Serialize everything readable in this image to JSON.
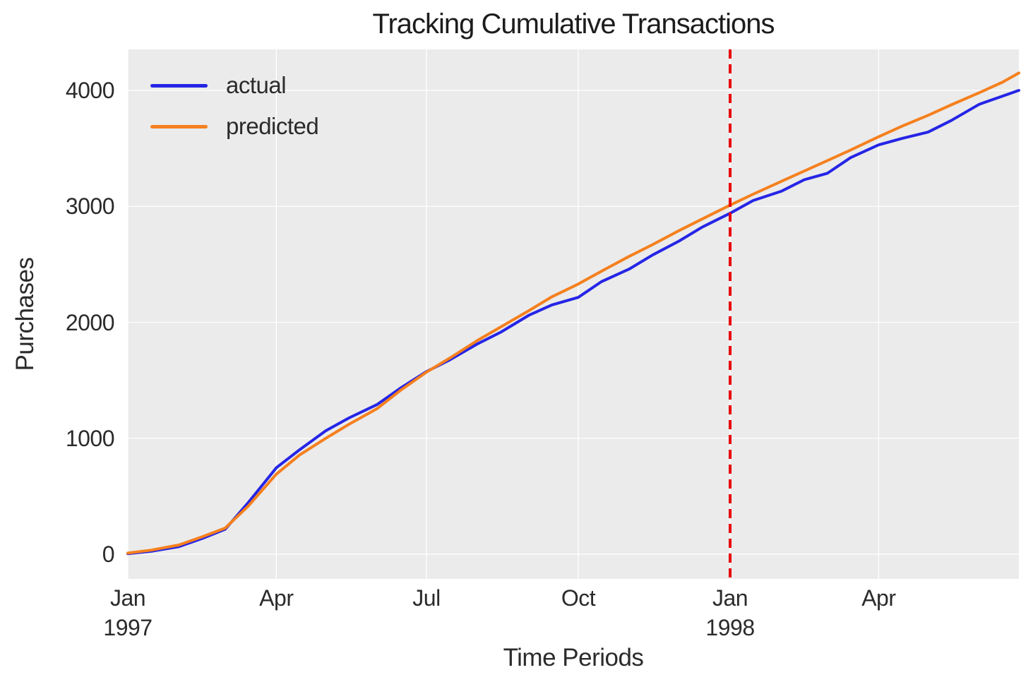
{
  "figure": {
    "title": "Tracking Cumulative Transactions",
    "x_axis_label": "Time Periods",
    "y_axis_label": "Purchases"
  },
  "chart_data": {
    "type": "line",
    "title": "Tracking Cumulative Transactions",
    "xlabel": "Time Periods",
    "ylabel": "Purchases",
    "grid": true,
    "legend_position": "upper left",
    "plot_bg_color": "#ebebeb",
    "grid_color": "#ffffff",
    "text_color": "#2b2b2b",
    "x_range_days": [
      0,
      540
    ],
    "x_date_range": [
      "1997-01-01",
      "1998-06-25"
    ],
    "ylim": [
      -215,
      4355
    ],
    "x_dates": [
      "1997-01-01",
      "1997-01-15",
      "1997-02-01",
      "1997-02-15",
      "1997-03-01",
      "1997-03-15",
      "1997-04-01",
      "1997-04-15",
      "1997-05-01",
      "1997-05-15",
      "1997-06-01",
      "1997-06-15",
      "1997-07-01",
      "1997-07-15",
      "1997-08-01",
      "1997-08-15",
      "1997-09-01",
      "1997-09-15",
      "1997-10-01",
      "1997-10-15",
      "1997-11-01",
      "1997-11-15",
      "1997-12-01",
      "1997-12-15",
      "1998-01-01",
      "1998-01-15",
      "1998-02-01",
      "1998-02-15",
      "1998-03-01",
      "1998-03-15",
      "1998-04-01",
      "1998-04-15",
      "1998-05-01",
      "1998-05-15",
      "1998-06-01",
      "1998-06-15",
      "1998-06-25"
    ],
    "x_day_offsets": [
      0,
      14,
      31,
      45,
      59,
      73,
      90,
      104,
      120,
      134,
      151,
      165,
      181,
      195,
      212,
      226,
      243,
      257,
      273,
      287,
      304,
      318,
      334,
      348,
      365,
      379,
      396,
      410,
      424,
      438,
      455,
      469,
      485,
      499,
      516,
      530,
      540
    ],
    "series": [
      {
        "name": "actual",
        "color": "#2525e6",
        "values": [
          5,
          25,
          65,
          135,
          215,
          445,
          745,
          900,
          1065,
          1175,
          1290,
          1430,
          1575,
          1675,
          1815,
          1915,
          2060,
          2150,
          2215,
          2350,
          2460,
          2580,
          2700,
          2820,
          2940,
          3050,
          3130,
          3230,
          3285,
          3420,
          3530,
          3585,
          3640,
          3740,
          3880,
          3950,
          4000
        ]
      },
      {
        "name": "predicted",
        "color": "#f5801e",
        "values": [
          10,
          35,
          80,
          150,
          225,
          415,
          690,
          855,
          1000,
          1120,
          1255,
          1410,
          1570,
          1690,
          1845,
          1960,
          2100,
          2220,
          2330,
          2440,
          2570,
          2670,
          2790,
          2890,
          3010,
          3105,
          3215,
          3305,
          3395,
          3485,
          3600,
          3690,
          3785,
          3875,
          3980,
          4070,
          4150
        ]
      }
    ],
    "x_ticks": [
      {
        "label": "Jan",
        "sub": "1997",
        "day": 0
      },
      {
        "label": "Apr",
        "sub": "",
        "day": 90
      },
      {
        "label": "Jul",
        "sub": "",
        "day": 181
      },
      {
        "label": "Oct",
        "sub": "",
        "day": 273
      },
      {
        "label": "Jan",
        "sub": "1998",
        "day": 365
      },
      {
        "label": "Apr",
        "sub": "",
        "day": 455
      }
    ],
    "y_ticks": [
      {
        "label": "0",
        "value": 0
      },
      {
        "label": "1000",
        "value": 1000
      },
      {
        "label": "2000",
        "value": 2000
      },
      {
        "label": "3000",
        "value": 3000
      },
      {
        "label": "4000",
        "value": 4000
      }
    ],
    "vline": {
      "date": "1998-01-01",
      "day": 365,
      "color": "#e8000b",
      "style": "dashed"
    }
  }
}
